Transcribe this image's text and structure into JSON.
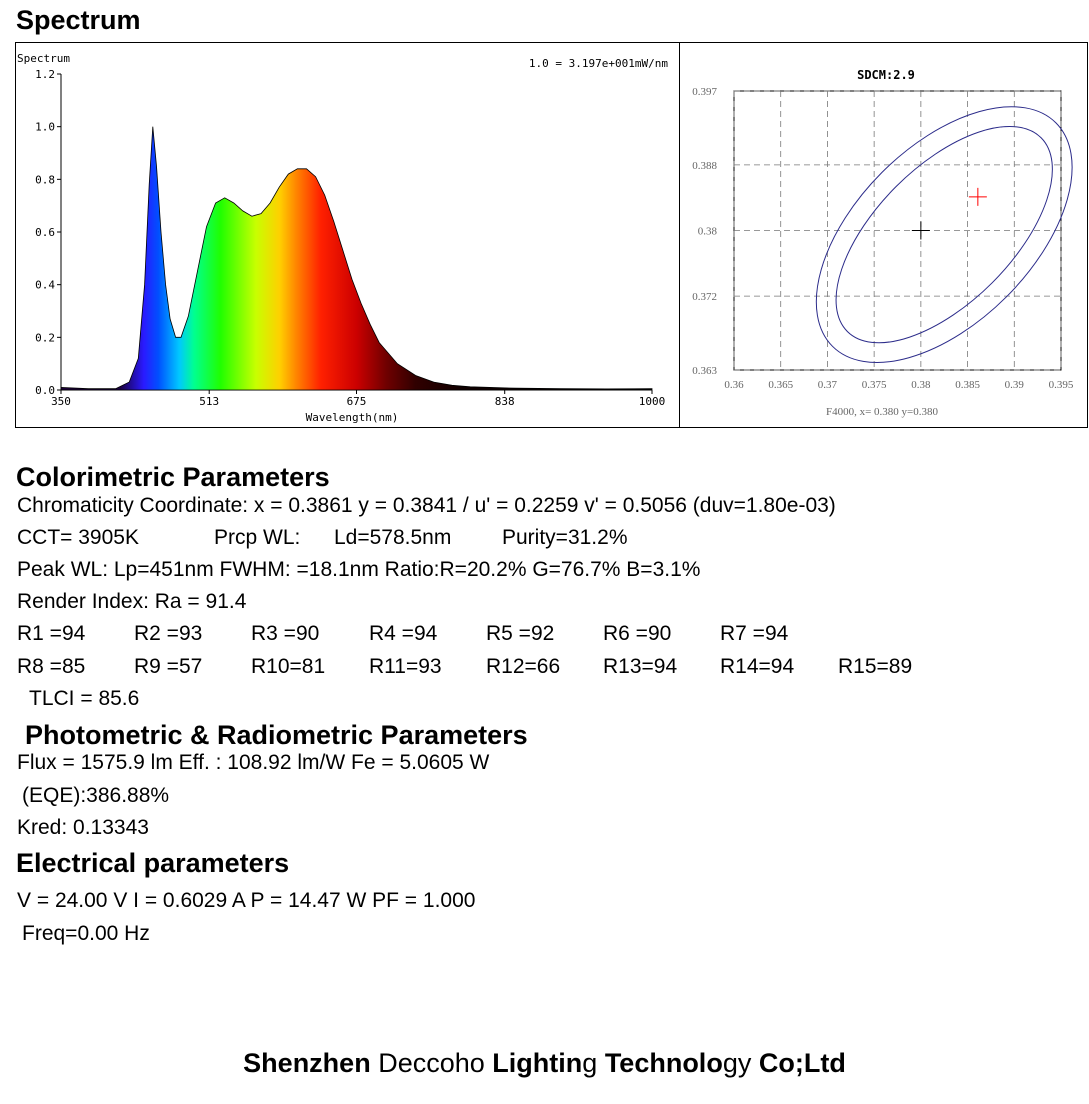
{
  "headings": {
    "spectrum": "Spectrum",
    "colorimetric": "Colorimetric Parameters",
    "photometric": "Photometric & Radiometric Parameters",
    "electrical": "Electrical parameters"
  },
  "chart_data": [
    {
      "type": "area",
      "title": "Spectrum",
      "annotation": "1.0 = 3.197e+001mW/nm",
      "xlabel": "Wavelength(nm)",
      "ylabel": "",
      "xlim": [
        350,
        1000
      ],
      "ylim": [
        0,
        1.2
      ],
      "xticks": [
        "350",
        "513",
        "675",
        "838",
        "1000"
      ],
      "yticks": [
        "0.0",
        "0.2",
        "0.4",
        "0.6",
        "0.8",
        "1.0",
        "1.2"
      ],
      "fill": "visible-spectrum-gradient",
      "x": [
        350,
        380,
        410,
        425,
        435,
        442,
        447,
        451,
        455,
        460,
        465,
        470,
        476,
        482,
        490,
        500,
        510,
        520,
        530,
        540,
        550,
        560,
        570,
        580,
        590,
        600,
        610,
        620,
        630,
        640,
        650,
        660,
        670,
        680,
        690,
        700,
        720,
        740,
        760,
        780,
        800,
        850,
        900,
        950,
        1000
      ],
      "values": [
        0.01,
        0.005,
        0.005,
        0.03,
        0.12,
        0.4,
        0.78,
        1.0,
        0.85,
        0.6,
        0.4,
        0.27,
        0.2,
        0.2,
        0.28,
        0.45,
        0.62,
        0.71,
        0.73,
        0.71,
        0.68,
        0.66,
        0.67,
        0.71,
        0.77,
        0.82,
        0.84,
        0.84,
        0.81,
        0.74,
        0.64,
        0.53,
        0.42,
        0.33,
        0.25,
        0.18,
        0.1,
        0.055,
        0.03,
        0.018,
        0.012,
        0.007,
        0.005,
        0.004,
        0.005
      ]
    },
    {
      "type": "scatter",
      "title": "SDCM:2.9",
      "caption": "F4000, x= 0.380 y=0.380",
      "xlim": [
        0.36,
        0.395
      ],
      "ylim": [
        0.363,
        0.397
      ],
      "xticks": [
        "0.36",
        "0.365",
        "0.37",
        "0.375",
        "0.38",
        "0.385",
        "0.39",
        "0.395"
      ],
      "yticks": [
        "0.397",
        "0.388",
        "0.38",
        "0.372",
        "0.363"
      ],
      "grid": true,
      "points": [
        {
          "name": "target",
          "x": 0.38,
          "y": 0.38,
          "color": "#000000"
        },
        {
          "name": "measured",
          "x": 0.3861,
          "y": 0.3841,
          "color": "#ff0000"
        }
      ],
      "ellipse_color": "#2b2b8a"
    }
  ],
  "colorimetric": {
    "chromaticity": "Chromaticity Coordinate: x = 0.3861 y = 0.3841 / u' = 0.2259 v' = 0.5056 (duv=1.80e-03)",
    "cct": "CCT=  3905K",
    "prcp_wl": "Prcp WL:",
    "ld": "Ld=578.5nm",
    "purity": "Purity=31.2%",
    "peak": "Peak WL:  Lp=451nm  FWHM:   =18.1nm  Ratio:R=20.2% G=76.7% B=3.1%",
    "render": "Render Index: Ra = 91.4",
    "r_row1": [
      "R1 =94",
      "R2 =93",
      "R3 =90",
      "R4 =94",
      "R5 =92",
      "R6 =90",
      "R7 =94"
    ],
    "r_row2": [
      "R8 =85",
      "R9 =57",
      "R10=81",
      "R11=93",
      "R12=66",
      "R13=94",
      "R14=94",
      "R15=89"
    ],
    "tlci": "TLCI = 85.6"
  },
  "photometric": {
    "flux": "Flux  = 1575.9 lm   Eff. : 108.92 lm/W  Fe  = 5.0605 W",
    "eqe": "(EQE):386.88%",
    "kred": "Kred: 0.13343"
  },
  "electrical": {
    "line1": "V = 24.00 V     I = 0.6029 A    P = 14.47 W PF = 1.000",
    "freq": "Freq=0.00 Hz"
  },
  "footer": {
    "w1": "Shenzhen",
    "w2": "Deccoho",
    "w3": "Lightin",
    "w4": "g",
    "w5": "Technolo",
    "w6": "gy",
    "w7": "Co;Ltd"
  }
}
